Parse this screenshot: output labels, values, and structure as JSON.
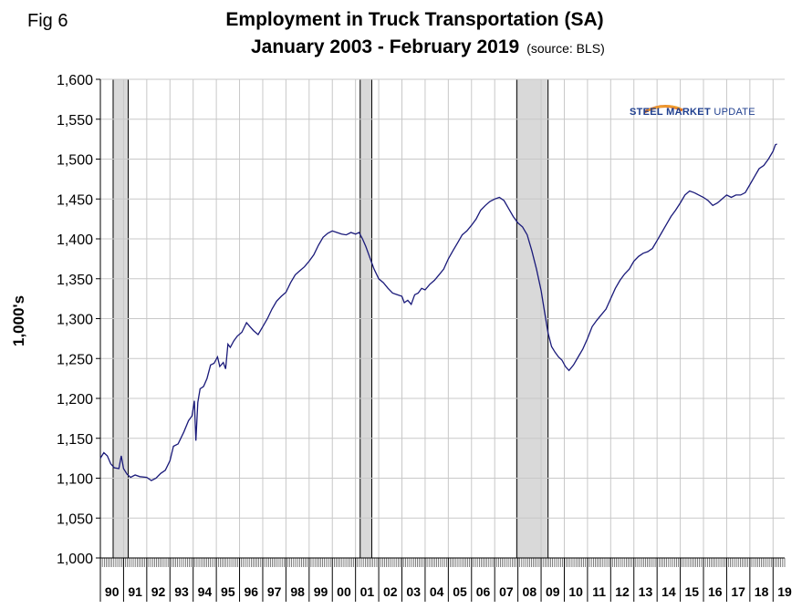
{
  "figure": {
    "fig_label": "Fig 6",
    "title_line1": "Employment in Truck Transportation (SA)",
    "title_line2": "January 2003 - February 2019",
    "source": "(source: BLS)",
    "logo_text_main": "STEEL MARKET",
    "logo_text_sub": "UPDATE"
  },
  "colors": {
    "line": "#1a1a7a",
    "recession_fill": "#d9d9d9",
    "grid": "#c8c8c8"
  },
  "chart_data": {
    "type": "line",
    "title": "Employment in Truck Transportation (SA)",
    "subtitle": "January 2003 - February 2019",
    "ylabel": "1,000's",
    "xlabel": "",
    "ylim": [
      1000,
      1600
    ],
    "xlim": [
      1990.0,
      2019.5
    ],
    "y_ticks": [
      1000,
      1050,
      1100,
      1150,
      1200,
      1250,
      1300,
      1350,
      1400,
      1450,
      1500,
      1550,
      1600
    ],
    "y_tick_labels": [
      "1,000",
      "1,050",
      "1,100",
      "1,150",
      "1,200",
      "1,250",
      "1,300",
      "1,350",
      "1,400",
      "1,450",
      "1,500",
      "1,550",
      "1,600"
    ],
    "x_tick_labels": [
      "90",
      "91",
      "92",
      "93",
      "94",
      "95",
      "96",
      "97",
      "98",
      "99",
      "00",
      "01",
      "02",
      "03",
      "04",
      "05",
      "06",
      "07",
      "08",
      "09",
      "10",
      "11",
      "12",
      "13",
      "14",
      "15",
      "16",
      "17",
      "18",
      "19"
    ],
    "recessions": [
      [
        1990.55,
        1991.2
      ],
      [
        2001.2,
        2001.7
      ],
      [
        2007.95,
        2009.3
      ]
    ],
    "grid": true,
    "legend": "none",
    "series": [
      {
        "values": [
          [
            1990.0,
            1125
          ],
          [
            1990.15,
            1132
          ],
          [
            1990.3,
            1128
          ],
          [
            1990.45,
            1118
          ],
          [
            1990.6,
            1113
          ],
          [
            1990.8,
            1112
          ],
          [
            1990.9,
            1128
          ],
          [
            1991.0,
            1112
          ],
          [
            1991.15,
            1105
          ],
          [
            1991.3,
            1101
          ],
          [
            1991.5,
            1104
          ],
          [
            1991.7,
            1102
          ],
          [
            1992.0,
            1101
          ],
          [
            1992.2,
            1097
          ],
          [
            1992.4,
            1100
          ],
          [
            1992.6,
            1106
          ],
          [
            1992.8,
            1110
          ],
          [
            1993.0,
            1122
          ],
          [
            1993.15,
            1140
          ],
          [
            1993.35,
            1143
          ],
          [
            1993.6,
            1158
          ],
          [
            1993.8,
            1172
          ],
          [
            1993.95,
            1178
          ],
          [
            1994.05,
            1197
          ],
          [
            1994.12,
            1147
          ],
          [
            1994.2,
            1195
          ],
          [
            1994.3,
            1212
          ],
          [
            1994.45,
            1215
          ],
          [
            1994.6,
            1225
          ],
          [
            1994.75,
            1242
          ],
          [
            1994.9,
            1244
          ],
          [
            1995.05,
            1252
          ],
          [
            1995.15,
            1240
          ],
          [
            1995.3,
            1245
          ],
          [
            1995.4,
            1237
          ],
          [
            1995.5,
            1268
          ],
          [
            1995.6,
            1264
          ],
          [
            1995.75,
            1272
          ],
          [
            1995.9,
            1278
          ],
          [
            1996.1,
            1283
          ],
          [
            1996.3,
            1295
          ],
          [
            1996.45,
            1290
          ],
          [
            1996.6,
            1285
          ],
          [
            1996.8,
            1280
          ],
          [
            1997.0,
            1290
          ],
          [
            1997.2,
            1300
          ],
          [
            1997.4,
            1312
          ],
          [
            1997.6,
            1322
          ],
          [
            1997.8,
            1328
          ],
          [
            1998.0,
            1333
          ],
          [
            1998.2,
            1345
          ],
          [
            1998.4,
            1355
          ],
          [
            1998.6,
            1360
          ],
          [
            1998.8,
            1365
          ],
          [
            1999.0,
            1372
          ],
          [
            1999.2,
            1380
          ],
          [
            1999.4,
            1392
          ],
          [
            1999.6,
            1402
          ],
          [
            1999.8,
            1407
          ],
          [
            2000.0,
            1410
          ],
          [
            2000.2,
            1408
          ],
          [
            2000.4,
            1406
          ],
          [
            2000.6,
            1405
          ],
          [
            2000.8,
            1408
          ],
          [
            2001.0,
            1406
          ],
          [
            2001.15,
            1408
          ],
          [
            2001.3,
            1400
          ],
          [
            2001.45,
            1390
          ],
          [
            2001.6,
            1378
          ],
          [
            2001.8,
            1362
          ],
          [
            2002.0,
            1350
          ],
          [
            2002.2,
            1345
          ],
          [
            2002.4,
            1338
          ],
          [
            2002.6,
            1332
          ],
          [
            2002.8,
            1330
          ],
          [
            2003.0,
            1328
          ],
          [
            2003.1,
            1320
          ],
          [
            2003.25,
            1323
          ],
          [
            2003.4,
            1318
          ],
          [
            2003.55,
            1330
          ],
          [
            2003.7,
            1332
          ],
          [
            2003.85,
            1338
          ],
          [
            2004.0,
            1336
          ],
          [
            2004.2,
            1343
          ],
          [
            2004.4,
            1348
          ],
          [
            2004.6,
            1355
          ],
          [
            2004.8,
            1362
          ],
          [
            2005.0,
            1375
          ],
          [
            2005.2,
            1385
          ],
          [
            2005.4,
            1395
          ],
          [
            2005.6,
            1405
          ],
          [
            2005.8,
            1410
          ],
          [
            2006.0,
            1417
          ],
          [
            2006.2,
            1425
          ],
          [
            2006.4,
            1436
          ],
          [
            2006.6,
            1442
          ],
          [
            2006.8,
            1447
          ],
          [
            2007.0,
            1450
          ],
          [
            2007.2,
            1452
          ],
          [
            2007.4,
            1448
          ],
          [
            2007.6,
            1438
          ],
          [
            2007.8,
            1428
          ],
          [
            2008.0,
            1420
          ],
          [
            2008.2,
            1415
          ],
          [
            2008.4,
            1405
          ],
          [
            2008.6,
            1385
          ],
          [
            2008.8,
            1362
          ],
          [
            2009.0,
            1335
          ],
          [
            2009.15,
            1308
          ],
          [
            2009.3,
            1282
          ],
          [
            2009.45,
            1265
          ],
          [
            2009.6,
            1258
          ],
          [
            2009.75,
            1252
          ],
          [
            2009.9,
            1248
          ],
          [
            2010.05,
            1240
          ],
          [
            2010.2,
            1235
          ],
          [
            2010.4,
            1242
          ],
          [
            2010.6,
            1252
          ],
          [
            2010.8,
            1262
          ],
          [
            2011.0,
            1275
          ],
          [
            2011.2,
            1290
          ],
          [
            2011.4,
            1298
          ],
          [
            2011.6,
            1305
          ],
          [
            2011.8,
            1312
          ],
          [
            2012.0,
            1325
          ],
          [
            2012.2,
            1338
          ],
          [
            2012.4,
            1348
          ],
          [
            2012.6,
            1356
          ],
          [
            2012.8,
            1362
          ],
          [
            2013.0,
            1372
          ],
          [
            2013.2,
            1378
          ],
          [
            2013.4,
            1382
          ],
          [
            2013.6,
            1384
          ],
          [
            2013.8,
            1388
          ],
          [
            2014.0,
            1398
          ],
          [
            2014.2,
            1408
          ],
          [
            2014.4,
            1418
          ],
          [
            2014.6,
            1428
          ],
          [
            2014.8,
            1436
          ],
          [
            2015.0,
            1445
          ],
          [
            2015.2,
            1455
          ],
          [
            2015.4,
            1460
          ],
          [
            2015.6,
            1458
          ],
          [
            2015.8,
            1455
          ],
          [
            2016.0,
            1452
          ],
          [
            2016.2,
            1448
          ],
          [
            2016.4,
            1442
          ],
          [
            2016.6,
            1445
          ],
          [
            2016.8,
            1450
          ],
          [
            2017.0,
            1455
          ],
          [
            2017.2,
            1452
          ],
          [
            2017.4,
            1455
          ],
          [
            2017.6,
            1455
          ],
          [
            2017.8,
            1458
          ],
          [
            2018.0,
            1468
          ],
          [
            2018.2,
            1478
          ],
          [
            2018.4,
            1488
          ],
          [
            2018.6,
            1492
          ],
          [
            2018.8,
            1500
          ],
          [
            2019.0,
            1510
          ],
          [
            2019.1,
            1518
          ],
          [
            2019.17,
            1519
          ]
        ]
      }
    ]
  }
}
